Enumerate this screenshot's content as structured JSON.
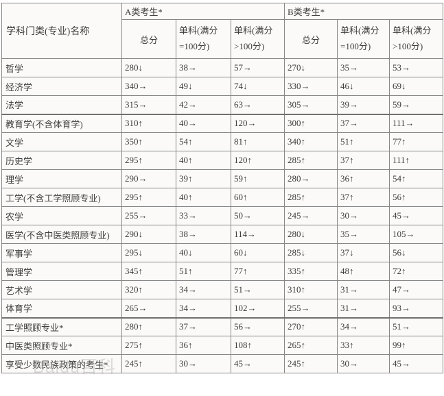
{
  "table": {
    "header": {
      "name_col": "学科门类(专业)名称",
      "group_a": "A类考生*",
      "group_b": "B类考生*",
      "sub_total": "总分",
      "sub_eq100_l1": "单科(满分",
      "sub_eq100_l2": "=100分)",
      "sub_gt100_l1": "单科(满分",
      "sub_gt100_l2": ">100分)"
    },
    "rows": [
      {
        "name": "哲学",
        "cells": [
          "280↓",
          "38→",
          "57→",
          "270↓",
          "35→",
          "53→"
        ]
      },
      {
        "name": "经济学",
        "cells": [
          "340→",
          "49↓",
          "74↓",
          "330→",
          "46↓",
          "69↓"
        ]
      },
      {
        "name": "法学",
        "cells": [
          "315→",
          "42→",
          "63→",
          "305→",
          "39→",
          "59→"
        ]
      },
      {
        "name": "教育学(不含体育学)",
        "cells": [
          "310↑",
          "40→",
          "120→",
          "300↑",
          "37→",
          "111→"
        ]
      },
      {
        "name": "文学",
        "cells": [
          "350↑",
          "54↑",
          "81↑",
          "340↑",
          "51↑",
          "77↑"
        ]
      },
      {
        "name": "历史学",
        "cells": [
          "295↑",
          "40↑",
          "120↑",
          "285↑",
          "37↑",
          "111↑"
        ]
      },
      {
        "name": "理学",
        "cells": [
          "290→",
          "39↑",
          "59↑",
          "280→",
          "36↑",
          "54↑"
        ]
      },
      {
        "name": "工学(不含工学照顾专业)",
        "cells": [
          "295↑",
          "40↑",
          "60↑",
          "285↑",
          "37↑",
          "56↑"
        ]
      },
      {
        "name": "农学",
        "cells": [
          "255→",
          "33→",
          "50→",
          "245→",
          "30→",
          "45→"
        ]
      },
      {
        "name": "医学(不含中医类照顾专业)",
        "cells": [
          "290↓",
          "38→",
          "114→",
          "280↓",
          "35→",
          "105→"
        ]
      },
      {
        "name": "军事学",
        "cells": [
          "295↓",
          "40↓",
          "60↓",
          "285↓",
          "37↓",
          "56↓"
        ]
      },
      {
        "name": "管理学",
        "cells": [
          "345↑",
          "51↑",
          "77↑",
          "335↑",
          "48↑",
          "72↑"
        ]
      },
      {
        "name": "艺术学",
        "cells": [
          "320↑",
          "34→",
          "51→",
          "310↑",
          "31→",
          "47→"
        ]
      },
      {
        "name": "体育学",
        "cells": [
          "265→",
          "34→",
          "102→",
          "255→",
          "31→",
          "93→"
        ]
      },
      {
        "name": "工学照顾专业*",
        "cells": [
          "280↑",
          "37→",
          "56→",
          "270↑",
          "34→",
          "51→"
        ]
      },
      {
        "name": "中医类照顾专业*",
        "cells": [
          "275↑",
          "36↑",
          "108↑",
          "265↑",
          "33↑",
          "99↑"
        ]
      },
      {
        "name": "享受少数民族政策的考生*",
        "cells": [
          "245↑",
          "30→",
          "45→",
          "245↑",
          "30→",
          "45→"
        ]
      }
    ]
  },
  "watermark": "Baidu百科",
  "colors": {
    "border": "#878787",
    "thick_separator": "#6f6f6f",
    "text": "#3d3d3d",
    "cell_background": "#fbfaf8",
    "watermark_gray": "#9f9f9f"
  }
}
